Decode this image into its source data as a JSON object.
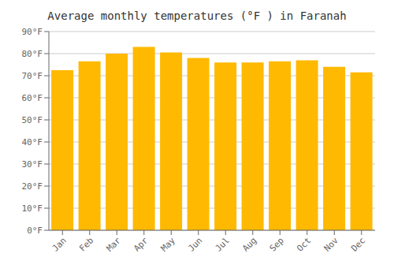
{
  "chart_data": {
    "type": "bar",
    "title": "Average monthly temperatures (°F ) in Faranah",
    "categories": [
      "Jan",
      "Feb",
      "Mar",
      "Apr",
      "May",
      "Jun",
      "Jul",
      "Aug",
      "Sep",
      "Oct",
      "Nov",
      "Dec"
    ],
    "values": [
      72.5,
      76.5,
      80.0,
      83.0,
      80.5,
      78.0,
      76.0,
      76.0,
      76.5,
      77.0,
      74.0,
      71.5
    ],
    "color": "#FFB900",
    "ylim": [
      0,
      90
    ],
    "yticks": [
      {
        "value": 0,
        "label": "0°F"
      },
      {
        "value": 10,
        "label": "10°F"
      },
      {
        "value": 20,
        "label": "20°F"
      },
      {
        "value": 30,
        "label": "30°F"
      },
      {
        "value": 40,
        "label": "40°F"
      },
      {
        "value": 50,
        "label": "50°F"
      },
      {
        "value": 60,
        "label": "60°F"
      },
      {
        "value": 70,
        "label": "70°F"
      },
      {
        "value": 80,
        "label": "80°F"
      },
      {
        "value": 90,
        "label": "90°F"
      }
    ],
    "grid": true
  }
}
